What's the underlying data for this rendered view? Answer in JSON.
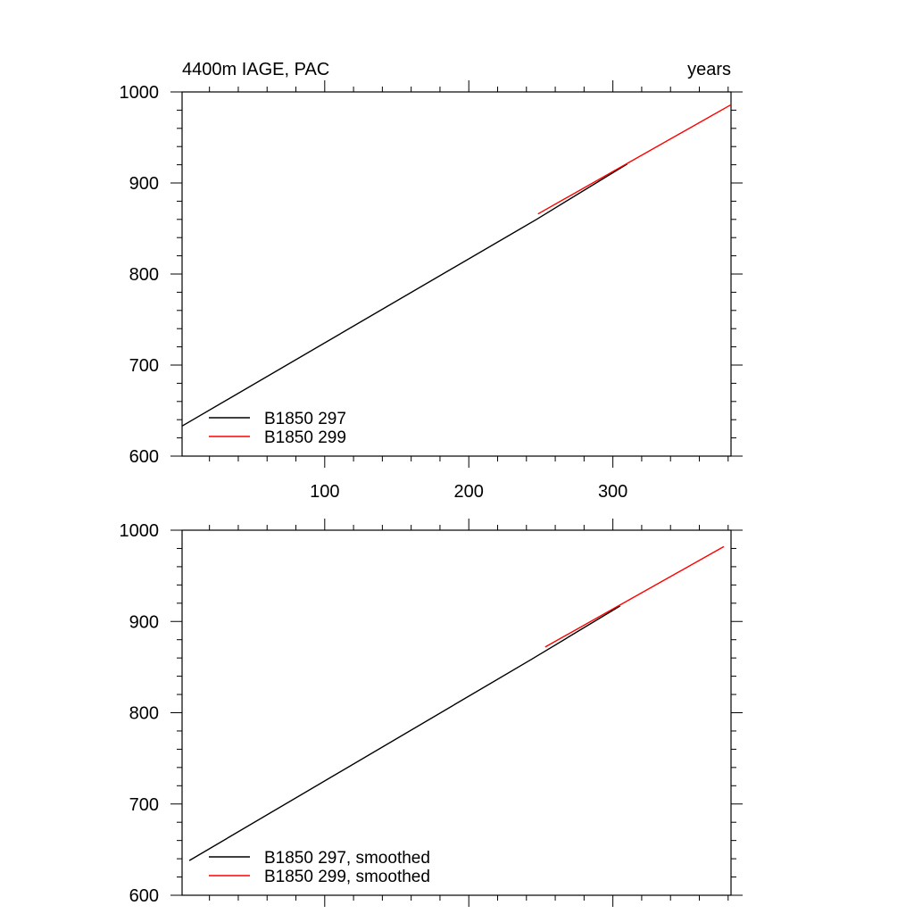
{
  "chart_data": [
    {
      "type": "line",
      "title_left": "4400m IAGE, PAC",
      "title_right": "years",
      "xlim": [
        1,
        382
      ],
      "ylim": [
        600,
        1000
      ],
      "x_ticks": [
        100,
        200,
        300
      ],
      "y_ticks": [
        600,
        700,
        800,
        900,
        1000
      ],
      "x_tick_labels_visible": true,
      "legend_position": "bottom-left",
      "series": [
        {
          "name": "B1850 297",
          "color": "#000000",
          "x": [
            1,
            247,
            310
          ],
          "y": [
            633,
            860,
            921
          ]
        },
        {
          "name": "B1850 299",
          "color": "#ff0000",
          "x": [
            248,
            382
          ],
          "y": [
            866,
            986
          ]
        }
      ]
    },
    {
      "type": "line",
      "xlim": [
        1,
        382
      ],
      "ylim": [
        600,
        1000
      ],
      "x_ticks": [
        100,
        200,
        300
      ],
      "y_ticks": [
        600,
        700,
        800,
        900,
        1000
      ],
      "x_tick_labels_visible": false,
      "legend_position": "bottom-left",
      "series": [
        {
          "name": "B1850 297, smoothed",
          "color": "#000000",
          "x": [
            6,
            243,
            305
          ],
          "y": [
            638,
            858,
            917
          ]
        },
        {
          "name": "B1850 299, smoothed",
          "color": "#ff0000",
          "x": [
            253,
            377
          ],
          "y": [
            872,
            982
          ]
        }
      ]
    }
  ]
}
